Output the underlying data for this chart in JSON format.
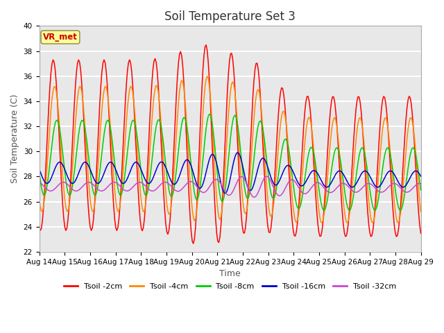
{
  "title": "Soil Temperature Set 3",
  "xlabel": "Time",
  "ylabel": "Soil Temperature (C)",
  "ylim": [
    22,
    40
  ],
  "yticks": [
    22,
    24,
    26,
    28,
    30,
    32,
    34,
    36,
    38,
    40
  ],
  "xtick_labels": [
    "Aug 14",
    "Aug 15",
    "Aug 16",
    "Aug 17",
    "Aug 18",
    "Aug 19",
    "Aug 20",
    "Aug 21",
    "Aug 22",
    "Aug 23",
    "Aug 24",
    "Aug 25",
    "Aug 26",
    "Aug 27",
    "Aug 28",
    "Aug 29"
  ],
  "colors": {
    "Tsoil -2cm": "#ff0000",
    "Tsoil -4cm": "#ff8800",
    "Tsoil -8cm": "#00cc00",
    "Tsoil -16cm": "#0000cc",
    "Tsoil -32cm": "#cc44cc"
  },
  "legend_labels": [
    "Tsoil -2cm",
    "Tsoil -4cm",
    "Tsoil -8cm",
    "Tsoil -16cm",
    "Tsoil -32cm"
  ],
  "annotation_text": "VR_met",
  "annotation_color": "#cc0000",
  "annotation_bg": "#ffff99",
  "plot_bg": "#e8e8e8",
  "fig_bg": "#ffffff",
  "grid_color": "#ffffff",
  "title_fontsize": 12,
  "tick_fontsize": 7.5,
  "label_fontsize": 9
}
